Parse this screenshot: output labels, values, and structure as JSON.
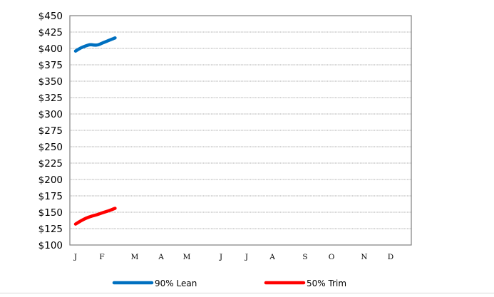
{
  "chart_data": {
    "type": "line",
    "title": "",
    "xlabel": "",
    "ylabel": "",
    "ylim": [
      100,
      450
    ],
    "yticks": [
      100,
      125,
      150,
      175,
      200,
      225,
      250,
      275,
      300,
      325,
      350,
      375,
      400,
      425,
      450
    ],
    "ytick_labels": [
      "$100",
      "$125",
      "$150",
      "$175",
      "$200",
      "$225",
      "$250",
      "$275",
      "$300",
      "$325",
      "$350",
      "$375",
      "$400",
      "$425",
      "$450"
    ],
    "categories": [
      "J",
      "F",
      "M",
      "A",
      "M",
      "J",
      "J",
      "A",
      "S",
      "O",
      "N",
      "D"
    ],
    "grid": true,
    "legend_position": "bottom",
    "series": [
      {
        "name": "90% Lean",
        "color": "#0070c0",
        "x": [
          0,
          0.2,
          0.4,
          0.55,
          0.7,
          0.85,
          1.0,
          1.2,
          1.4
        ],
        "values": [
          396,
          401,
          404,
          406,
          405,
          405,
          408,
          412,
          416
        ]
      },
      {
        "name": "50% Trim",
        "color": "#ff0000",
        "x": [
          0,
          0.2,
          0.4,
          0.6,
          0.8,
          1.0,
          1.2,
          1.4
        ],
        "values": [
          132,
          137,
          141,
          144,
          146,
          149,
          152,
          156
        ]
      }
    ]
  }
}
